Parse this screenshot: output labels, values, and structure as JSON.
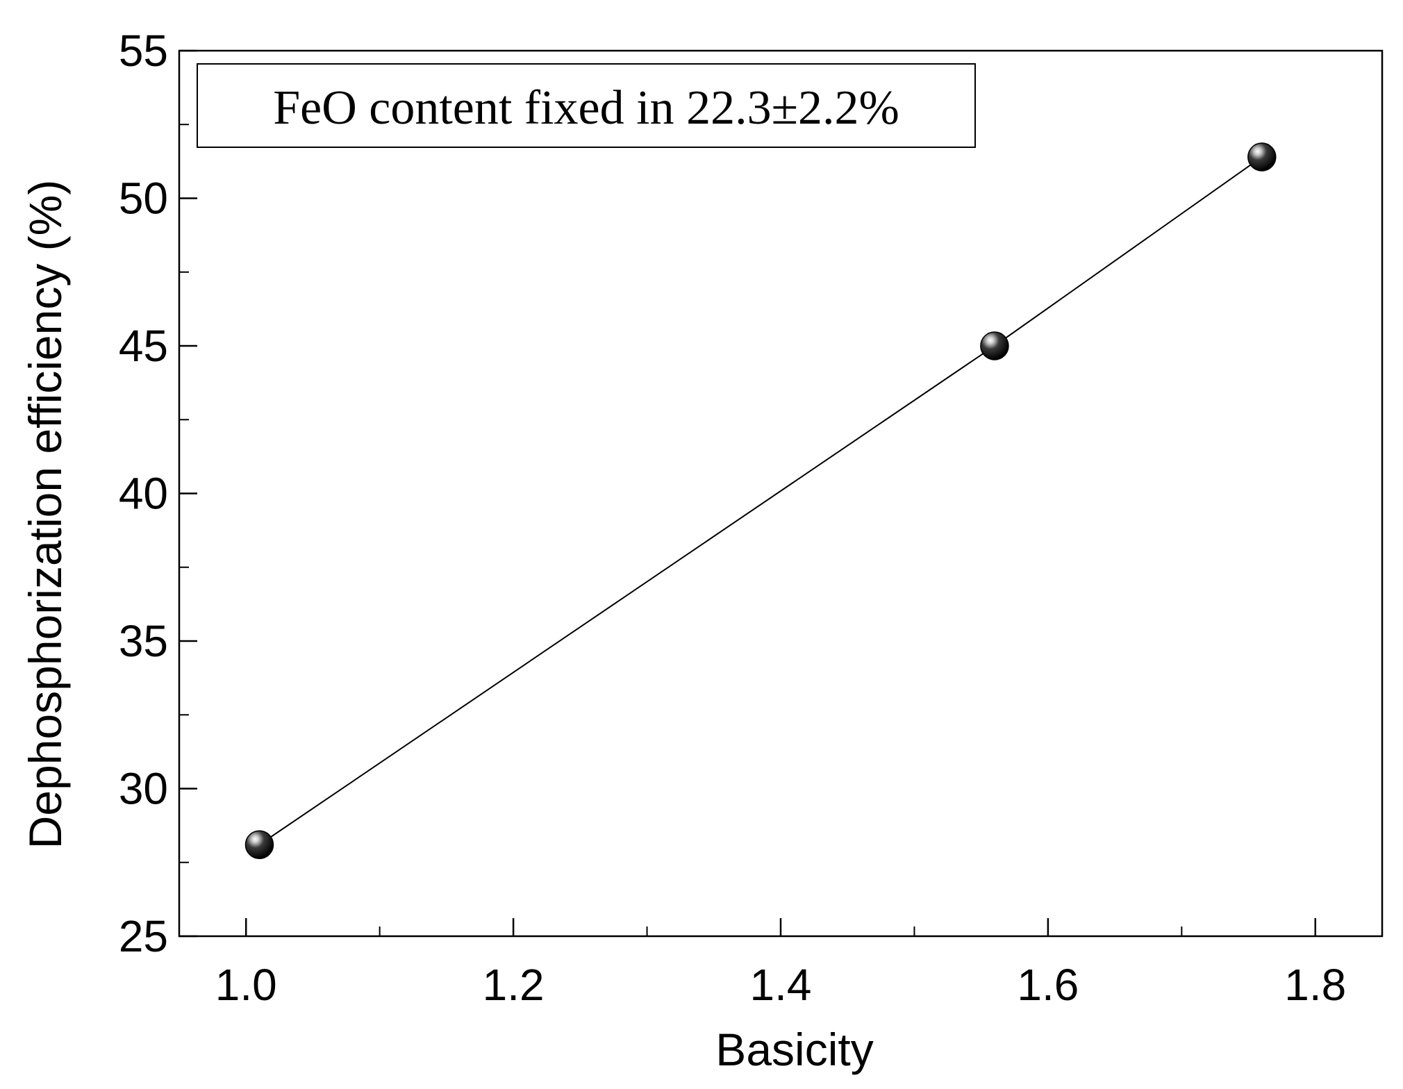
{
  "chart_data": {
    "type": "line",
    "title": "",
    "xlabel": "Basicity",
    "ylabel": "Dephosphorization efficiency (%)",
    "xlim": [
      0.95,
      1.85
    ],
    "ylim": [
      25,
      55
    ],
    "x_ticks": [
      1.0,
      1.2,
      1.4,
      1.6,
      1.8
    ],
    "x_tick_labels": [
      "1.0",
      "1.2",
      "1.4",
      "1.6",
      "1.8"
    ],
    "x_minor_ticks": [
      1.1,
      1.3,
      1.5,
      1.7
    ],
    "y_ticks": [
      25,
      30,
      35,
      40,
      45,
      50,
      55
    ],
    "y_tick_labels": [
      "25",
      "30",
      "35",
      "40",
      "45",
      "50",
      "55"
    ],
    "y_minor_ticks": [
      27.5,
      32.5,
      37.5,
      42.5,
      47.5,
      52.5
    ],
    "grid": false,
    "series": [
      {
        "x": [
          1.01,
          1.56,
          1.76
        ],
        "y": [
          28.1,
          45.0,
          51.4
        ],
        "marker": "sphere",
        "color": "#000000"
      }
    ],
    "annotation": "FeO content fixed in 22.3±2.2%"
  }
}
